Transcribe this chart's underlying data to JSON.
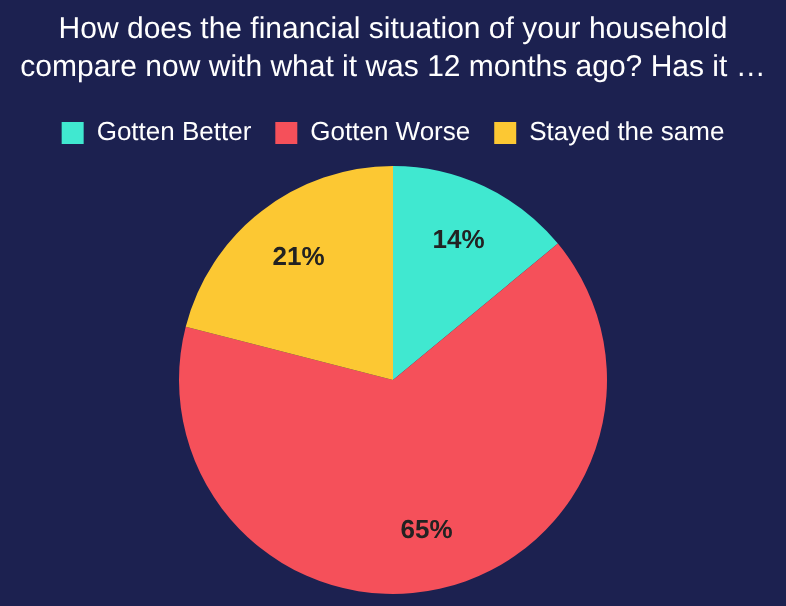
{
  "chart_data": {
    "type": "pie",
    "title": "How does the financial situation of your household compare now with what it was 12 months ago? Has it …",
    "categories": [
      "Gotten Better",
      "Gotten Worse",
      "Stayed the same"
    ],
    "values": [
      14,
      65,
      21
    ],
    "colors": [
      "#40e8d0",
      "#f5505a",
      "#fcc833"
    ],
    "value_labels": [
      "14%",
      "65%",
      "21%"
    ],
    "legend": "top"
  }
}
